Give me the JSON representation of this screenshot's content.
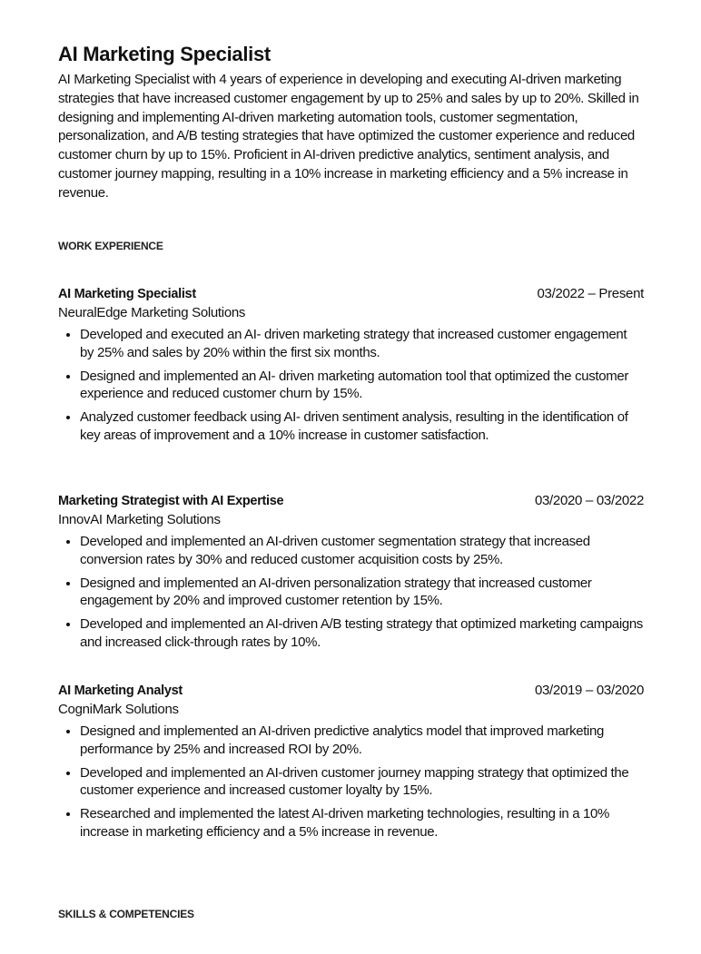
{
  "header": {
    "title": "AI Marketing Specialist",
    "summary": "AI Marketing Specialist with 4 years of experience in developing and executing AI-driven marketing strategies that have increased customer engagement by up to 25% and sales by up to 20%. Skilled in designing and implementing AI-driven marketing automation tools, customer segmentation, personalization, and A/B testing strategies that have optimized the customer experience and reduced customer churn by up to 15%. Proficient in AI-driven predictive analytics, sentiment analysis, and customer journey mapping, resulting in a 10% increase in marketing efficiency and a 5% increase in revenue."
  },
  "work_experience": {
    "heading": "WORK EXPERIENCE",
    "jobs": [
      {
        "title": "AI Marketing Specialist",
        "dates": "03/2022 – Present",
        "company": "NeuralEdge Marketing Solutions",
        "bullets": [
          "Developed and executed an AI- driven marketing strategy that increased customer engagement by 25% and sales by 20% within the first six months.",
          "Designed and implemented an AI- driven marketing automation tool that optimized the customer experience and reduced customer churn by 15%.",
          "Analyzed customer feedback using AI- driven sentiment analysis, resulting in the identification of key areas of improvement and a 10% increase in customer satisfaction."
        ]
      },
      {
        "title": "Marketing Strategist with AI Expertise",
        "dates": "03/2020 – 03/2022",
        "company": "InnovAI Marketing Solutions",
        "bullets": [
          "Developed and implemented an AI-driven customer segmentation strategy that increased conversion rates by 30% and reduced customer acquisition costs by 25%.",
          "Designed and implemented an AI-driven personalization strategy that increased customer engagement by 20% and improved customer retention by 15%.",
          "Developed and implemented an AI-driven A/B testing strategy that optimized marketing campaigns and increased click-through rates by 10%."
        ]
      },
      {
        "title": "AI Marketing Analyst",
        "dates": "03/2019 – 03/2020",
        "company": "CogniMark Solutions",
        "bullets": [
          "Designed and implemented an AI-driven predictive analytics model that improved marketing performance by 25% and increased ROI by 20%.",
          "Developed and implemented an AI-driven customer journey mapping strategy that optimized the customer experience and increased customer loyalty by 15%.",
          "Researched and implemented the latest AI-driven marketing technologies, resulting in a 10% increase in marketing efficiency and a 5% increase in revenue."
        ]
      }
    ]
  },
  "skills": {
    "heading": "SKILLS & COMPETENCIES"
  }
}
